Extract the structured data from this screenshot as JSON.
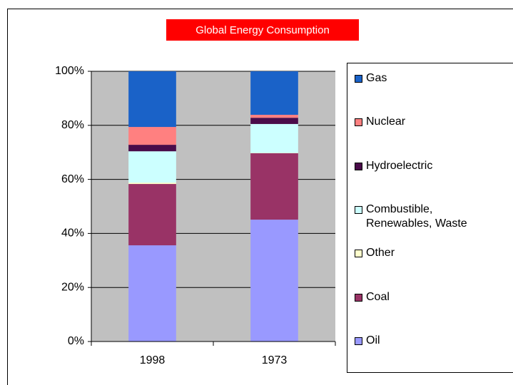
{
  "chart_data": {
    "type": "stacked_bar",
    "title": "Global Energy Consumption",
    "categories": [
      "1998",
      "1973"
    ],
    "series": [
      {
        "name": "Oil",
        "color": "#9999ff",
        "values": [
          35.6,
          45.1
        ]
      },
      {
        "name": "Coal",
        "color": "#993366",
        "values": [
          22.7,
          24.6
        ]
      },
      {
        "name": "Other",
        "color": "#ffffcc",
        "values": [
          0.5,
          0.1
        ]
      },
      {
        "name": "Combustible, Renewables, Waste",
        "color": "#ccffff",
        "values": [
          11.6,
          10.7
        ]
      },
      {
        "name": "Hydroelectric",
        "color": "#4a0c4a",
        "values": [
          2.4,
          2.3
        ]
      },
      {
        "name": "Nuclear",
        "color": "#ff8080",
        "values": [
          6.6,
          1.1
        ]
      },
      {
        "name": "Gas",
        "color": "#1a62c8",
        "values": [
          20.6,
          16.1
        ]
      }
    ],
    "ylim": [
      0,
      100
    ],
    "yticks": [
      {
        "value": 0,
        "label": "0%"
      },
      {
        "value": 20,
        "label": "20%"
      },
      {
        "value": 40,
        "label": "40%"
      },
      {
        "value": 60,
        "label": "60%"
      },
      {
        "value": 80,
        "label": "80%"
      },
      {
        "value": 100,
        "label": "100%"
      }
    ],
    "grid": true,
    "legend": "right"
  }
}
